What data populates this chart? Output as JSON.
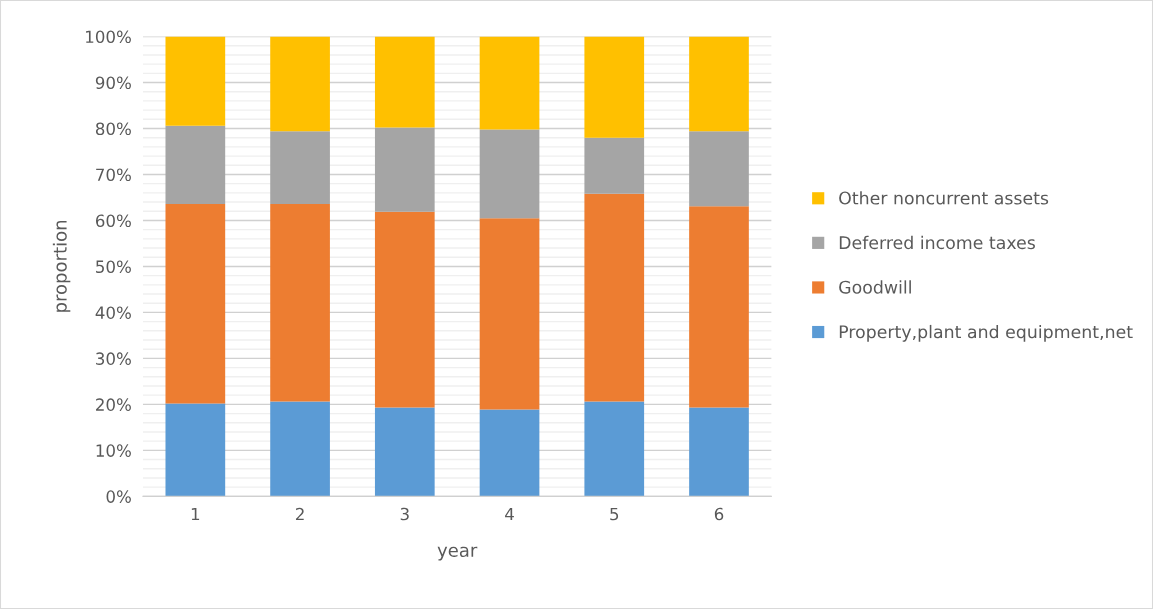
{
  "chart_data": {
    "type": "bar",
    "stacked": true,
    "xlabel": "year",
    "ylabel": "proportion",
    "categories": [
      "1",
      "2",
      "3",
      "4",
      "5",
      "6"
    ],
    "series": [
      {
        "name": "Property,plant and equipment,net",
        "color": "#5b9bd5",
        "values": [
          20.2,
          20.6,
          19.3,
          18.9,
          20.6,
          19.3
        ]
      },
      {
        "name": "Goodwill",
        "color": "#ed7d31",
        "values": [
          43.4,
          43.0,
          42.6,
          41.6,
          45.2,
          43.8
        ]
      },
      {
        "name": "Deferred income taxes",
        "color": "#a5a5a5",
        "values": [
          17.0,
          15.8,
          18.3,
          19.3,
          12.2,
          16.3
        ]
      },
      {
        "name": "Other noncurrent assets",
        "color": "#ffc000",
        "values": [
          19.4,
          20.6,
          19.8,
          20.2,
          22.0,
          20.6
        ]
      }
    ],
    "ylim": [
      0,
      100
    ],
    "yticks": [
      {
        "value": 0,
        "label": "0%"
      },
      {
        "value": 2,
        "label": null
      },
      {
        "value": 4,
        "label": null
      },
      {
        "value": 6,
        "label": null
      },
      {
        "value": 8,
        "label": null
      },
      {
        "value": 10,
        "label": "10%"
      },
      {
        "value": 12,
        "label": null
      },
      {
        "value": 14,
        "label": null
      },
      {
        "value": 16,
        "label": null
      },
      {
        "value": 18,
        "label": null
      },
      {
        "value": 20,
        "label": "20%"
      },
      {
        "value": 22,
        "label": null
      },
      {
        "value": 24,
        "label": null
      },
      {
        "value": 26,
        "label": null
      },
      {
        "value": 28,
        "label": null
      },
      {
        "value": 30,
        "label": "30%"
      },
      {
        "value": 32,
        "label": null
      },
      {
        "value": 34,
        "label": null
      },
      {
        "value": 36,
        "label": null
      },
      {
        "value": 38,
        "label": null
      },
      {
        "value": 40,
        "label": "40%"
      },
      {
        "value": 42,
        "label": null
      },
      {
        "value": 44,
        "label": null
      },
      {
        "value": 46,
        "label": null
      },
      {
        "value": 48,
        "label": null
      },
      {
        "value": 50,
        "label": "50%"
      },
      {
        "value": 52,
        "label": null
      },
      {
        "value": 54,
        "label": null
      },
      {
        "value": 56,
        "label": null
      },
      {
        "value": 58,
        "label": null
      },
      {
        "value": 60,
        "label": "60%"
      },
      {
        "value": 62,
        "label": null
      },
      {
        "value": 64,
        "label": null
      },
      {
        "value": 66,
        "label": null
      },
      {
        "value": 68,
        "label": null
      },
      {
        "value": 70,
        "label": "70%"
      },
      {
        "value": 72,
        "label": null
      },
      {
        "value": 74,
        "label": null
      },
      {
        "value": 76,
        "label": null
      },
      {
        "value": 78,
        "label": null
      },
      {
        "value": 80,
        "label": "80%"
      },
      {
        "value": 82,
        "label": null
      },
      {
        "value": 84,
        "label": null
      },
      {
        "value": 86,
        "label": null
      },
      {
        "value": 88,
        "label": null
      },
      {
        "value": 90,
        "label": "90%"
      },
      {
        "value": 92,
        "label": null
      },
      {
        "value": 94,
        "label": null
      },
      {
        "value": 96,
        "label": null
      },
      {
        "value": 98,
        "label": null
      },
      {
        "value": 100,
        "label": "100%"
      }
    ],
    "grid": "y",
    "legend": "right"
  }
}
